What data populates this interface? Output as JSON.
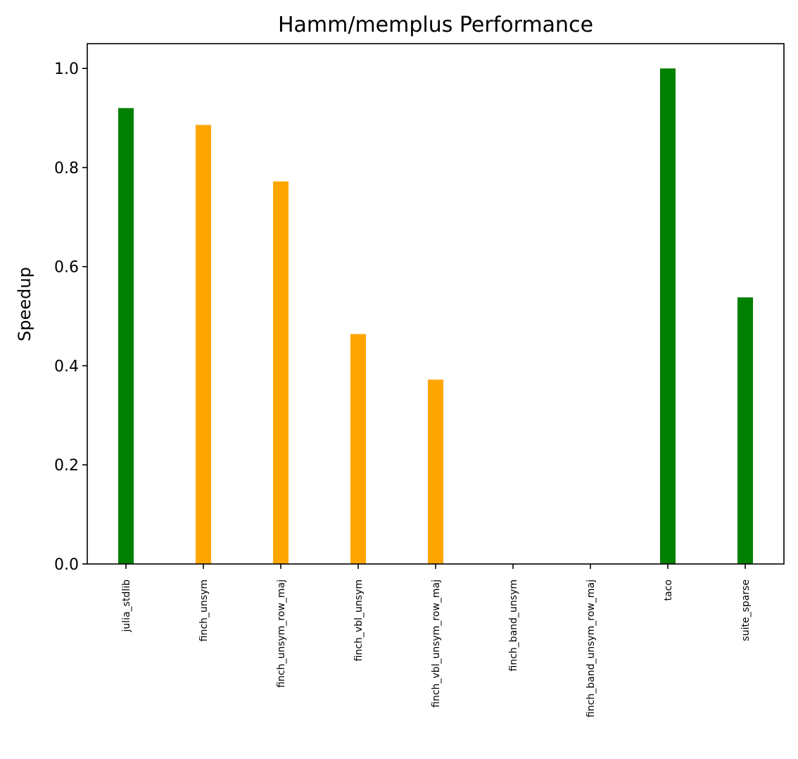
{
  "chart_data": {
    "type": "bar",
    "title": "Hamm/memplus Performance",
    "xlabel": "",
    "ylabel": "Speedup",
    "categories": [
      "julia_stdlib",
      "finch_unsym",
      "finch_unsym_row_maj",
      "finch_vbl_unsym",
      "finch_vbl_unsym_row_maj",
      "finch_band_unsym",
      "finch_band_unsym_row_maj",
      "taco",
      "suite_sparse"
    ],
    "values": [
      0.92,
      0.886,
      0.772,
      0.464,
      0.372,
      0.0,
      0.0,
      1.0,
      0.538
    ],
    "bar_colors": [
      "#008000",
      "#ffa500",
      "#ffa500",
      "#ffa500",
      "#ffa500",
      "#ffa500",
      "#ffa500",
      "#008000",
      "#008000"
    ],
    "ylim": [
      0,
      1.05
    ],
    "yticks": [
      "0.0",
      "0.2",
      "0.4",
      "0.6",
      "0.8",
      "1.0"
    ],
    "grid": false,
    "legend": "none"
  }
}
